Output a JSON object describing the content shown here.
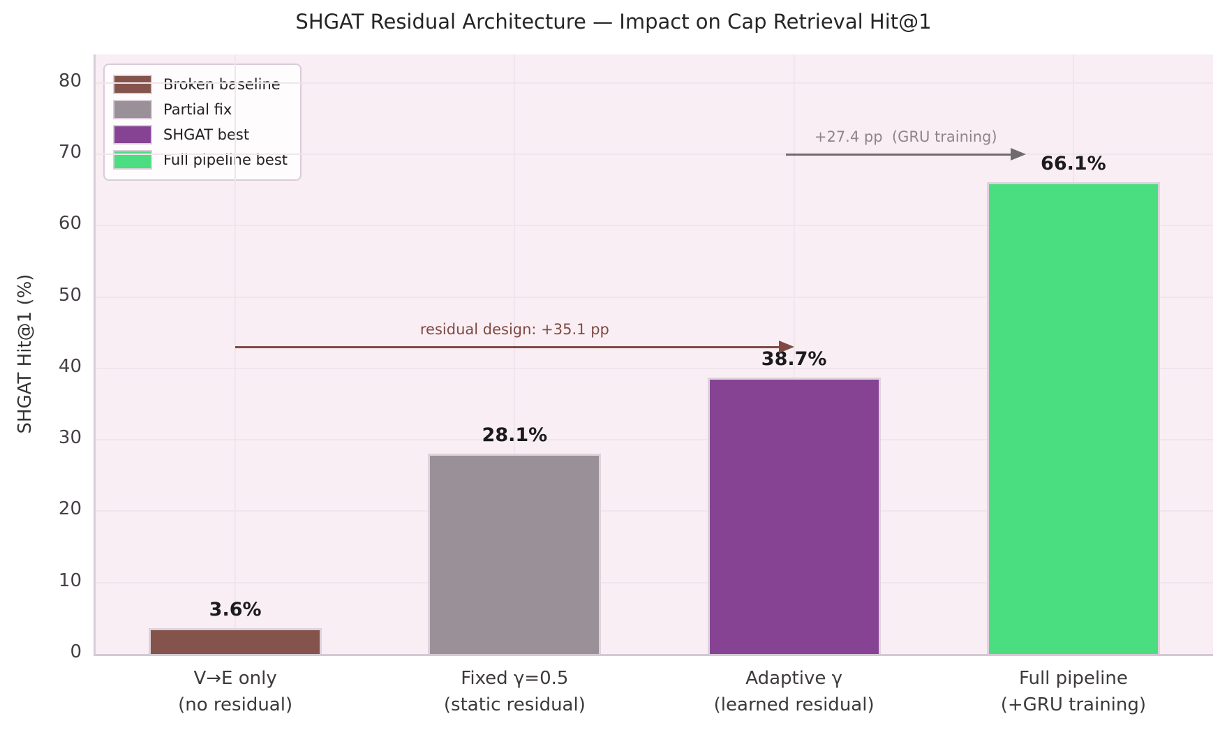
{
  "title": "SHGAT Residual Architecture — Impact on Cap Retrieval Hit@1",
  "chart_data": {
    "type": "bar",
    "title": "SHGAT Residual Architecture — Impact on Cap Retrieval Hit@1",
    "xlabel": "",
    "ylabel": "SHGAT Hit@1 (%)",
    "ylim": [
      0,
      84
    ],
    "yticks": [
      0,
      10,
      20,
      30,
      40,
      50,
      60,
      70,
      80
    ],
    "grid": true,
    "legend_position": "upper left",
    "categories": [
      "V→E only\n(no residual)",
      "Fixed γ=0.5\n(static residual)",
      "Adaptive γ\n(learned residual)",
      "Full pipeline\n(+GRU training)"
    ],
    "values": [
      3.6,
      28.1,
      38.7,
      66.1
    ],
    "value_labels": [
      "3.6%",
      "28.1%",
      "38.7%",
      "66.1%"
    ],
    "bar_colors": [
      "#84544C",
      "#9A9097",
      "#864394",
      "#4ADE80"
    ],
    "legend_entries": [
      {
        "label": "Broken baseline",
        "color": "#84544C"
      },
      {
        "label": "Partial fix",
        "color": "#9A9097"
      },
      {
        "label": "SHGAT best",
        "color": "#864394"
      },
      {
        "label": "Full pipeline best",
        "color": "#4ADE80"
      }
    ],
    "annotations": [
      {
        "text": "residual design: +35.1 pp",
        "text_color": "#7E4A41",
        "arrow_color": "#7E4A41",
        "x_from": 0.0,
        "x_to": 2.0,
        "y": 43.0
      },
      {
        "text": "+27.4 pp  (GRU training)",
        "text_color": "#8B8689",
        "arrow_color": "#6F6A6D",
        "x_from": 1.97,
        "x_to": 2.83,
        "y": 70.0
      }
    ],
    "colors": {
      "plot_background": "#F9EEF4",
      "figure_background": "#FFFFFF",
      "gridline": "#F1E5ED",
      "value_label": "#1B1B1B"
    }
  }
}
